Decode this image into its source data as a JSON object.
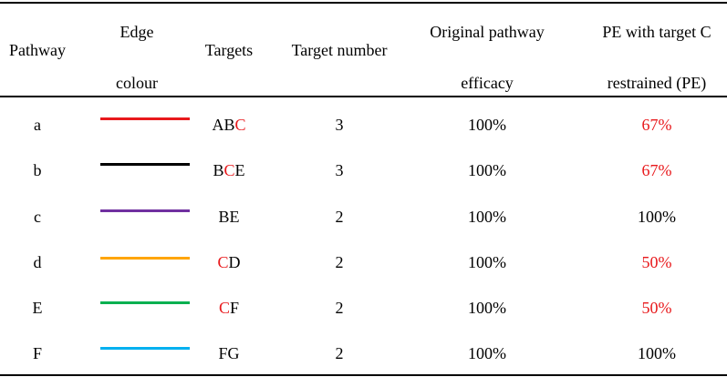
{
  "colors": {
    "highlight": "#e8191c"
  },
  "headers": {
    "pathway": "Pathway",
    "edge_colour_1": "Edge",
    "edge_colour_2": "colour",
    "targets": "Targets",
    "target_number": "Target number",
    "efficacy_1": "Original pathway",
    "efficacy_2": "efficacy",
    "pe_1": "PE with target C",
    "pe_2": "restrained (PE)"
  },
  "rows": [
    {
      "pathway": "a",
      "edge_color": "#e8191c",
      "targets_pre": "AB",
      "targets_c": "C",
      "targets_post": "",
      "number": "3",
      "efficacy": "100%",
      "pe": "67%",
      "pe_red": true
    },
    {
      "pathway": "b",
      "edge_color": "#000000",
      "targets_pre": "B",
      "targets_c": "C",
      "targets_post": "E",
      "number": "3",
      "efficacy": "100%",
      "pe": "67%",
      "pe_red": true
    },
    {
      "pathway": "c",
      "edge_color": "#7030a0",
      "targets_pre": "BE",
      "targets_c": "",
      "targets_post": "",
      "number": "2",
      "efficacy": "100%",
      "pe": "100%",
      "pe_red": false
    },
    {
      "pathway": "d",
      "edge_color": "#ffa500",
      "targets_pre": "",
      "targets_c": "C",
      "targets_post": "D",
      "number": "2",
      "efficacy": "100%",
      "pe": "50%",
      "pe_red": true
    },
    {
      "pathway": "E",
      "edge_color": "#00b050",
      "targets_pre": "",
      "targets_c": "C",
      "targets_post": "F",
      "number": "2",
      "efficacy": "100%",
      "pe": "50%",
      "pe_red": true
    },
    {
      "pathway": "F",
      "edge_color": "#00b0f0",
      "targets_pre": "FG",
      "targets_c": "",
      "targets_post": "",
      "number": "2",
      "efficacy": "100%",
      "pe": "100%",
      "pe_red": false
    }
  ]
}
